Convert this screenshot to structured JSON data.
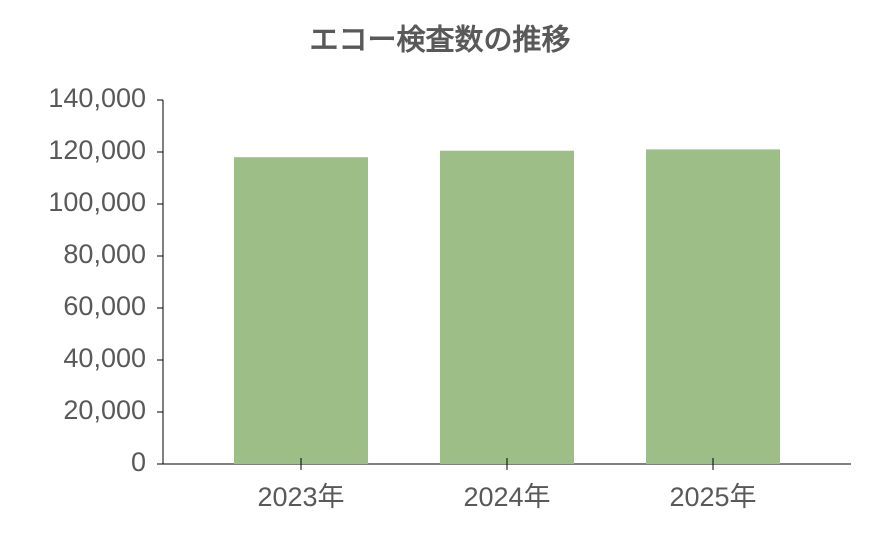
{
  "chart_data": {
    "type": "bar",
    "title": "エコー検査数の推移",
    "categories": [
      "2023年",
      "2024年",
      "2025年"
    ],
    "values": [
      118000,
      120500,
      121000
    ],
    "color": "#9dbf87",
    "ylim": [
      0,
      140000
    ],
    "yticks": [
      0,
      {
        "value": 20000,
        "label": "20,000"
      },
      {
        "value": 40000,
        "label": "40,000"
      },
      {
        "value": 60000,
        "label": "60,000"
      },
      {
        "value": 80000,
        "label": "80,000"
      },
      {
        "value": 100000,
        "label": "100,000"
      },
      {
        "value": 120000,
        "label": "120,000"
      },
      {
        "value": 140000,
        "label": "140,000"
      }
    ],
    "grid": false
  }
}
